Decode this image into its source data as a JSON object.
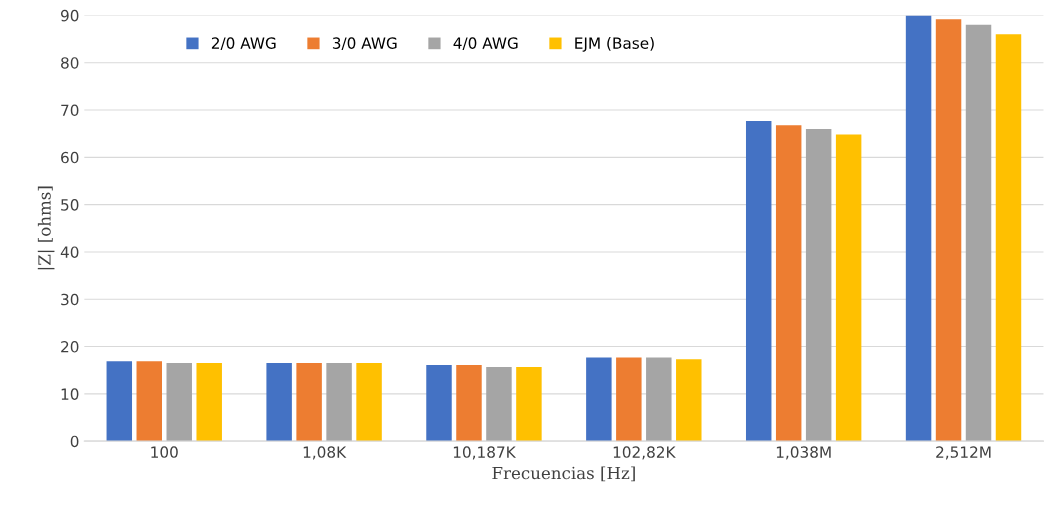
{
  "chart_data": {
    "type": "bar",
    "xlabel": "Frecuencias [Hz]",
    "ylabel": "|Z| [ohms]",
    "categories": [
      "100",
      "1,08K",
      "10,187K",
      "102,82K",
      "1,038M",
      "2,512M"
    ],
    "series": [
      {
        "name": "2/0 AWG",
        "color": "#4472c4",
        "values": [
          16.9,
          16.5,
          16.1,
          17.7,
          67.7,
          90.0
        ]
      },
      {
        "name": "3/0 AWG",
        "color": "#ed7d31",
        "values": [
          16.9,
          16.5,
          16.1,
          17.7,
          66.8,
          89.2
        ]
      },
      {
        "name": "4/0 AWG",
        "color": "#a5a5a5",
        "values": [
          16.5,
          16.5,
          15.7,
          17.7,
          66.0,
          88.0
        ]
      },
      {
        "name": "EJM (Base)",
        "color": "#ffc000",
        "values": [
          16.5,
          16.5,
          15.7,
          17.3,
          64.8,
          86.0
        ]
      }
    ],
    "ylim": [
      0,
      90
    ],
    "yticks": [
      0,
      10,
      20,
      30,
      40,
      50,
      60,
      70,
      80,
      90
    ],
    "grid": "y",
    "legend": "top left"
  }
}
